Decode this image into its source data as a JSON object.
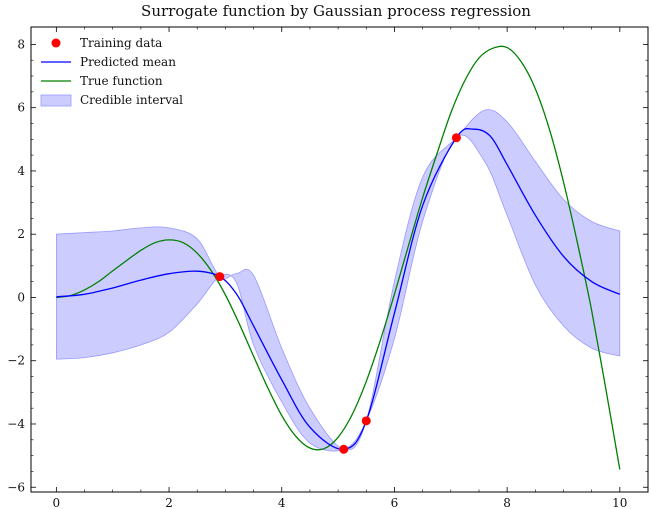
{
  "chart_data": {
    "type": "line",
    "title": "Surrogate function by Gaussian process regression",
    "xlabel": "",
    "ylabel": "",
    "xlim": [
      -0.45,
      10.5
    ],
    "ylim": [
      -6.15,
      8.55
    ],
    "x_ticks": [
      0,
      2,
      4,
      6,
      8,
      10
    ],
    "y_ticks": [
      -6,
      -4,
      -2,
      0,
      2,
      4,
      6,
      8
    ],
    "grid": false,
    "legend_position": "top-left",
    "legend": [
      "Training data",
      "Predicted mean",
      "True function",
      "Credible interval"
    ],
    "colors": {
      "training": "#ff0000",
      "mean": "#0000ff",
      "true": "#008000",
      "interval_fill": "#aaaaff",
      "interval_edge": "#9999ff"
    },
    "series": [
      {
        "name": "Training data",
        "kind": "scatter",
        "x": [
          2.9,
          5.1,
          5.5,
          7.1
        ],
        "y": [
          0.66,
          -4.8,
          -3.9,
          5.05
        ]
      },
      {
        "name": "Predicted mean",
        "kind": "line",
        "x": [
          0,
          0.5,
          1.0,
          1.5,
          2.0,
          2.5,
          2.9,
          3.2,
          3.5,
          4.0,
          4.5,
          5.1,
          5.5,
          6.0,
          6.5,
          7.1,
          7.4,
          7.7,
          8.0,
          8.5,
          9.0,
          9.5,
          10.0
        ],
        "y": [
          0.02,
          0.1,
          0.3,
          0.55,
          0.75,
          0.83,
          0.66,
          0.1,
          -0.9,
          -2.6,
          -4.1,
          -4.8,
          -3.9,
          -0.5,
          2.9,
          5.05,
          5.32,
          5.1,
          4.2,
          2.6,
          1.3,
          0.5,
          0.1
        ]
      },
      {
        "name": "True function",
        "kind": "line",
        "x": [
          0,
          0.25,
          0.5,
          0.75,
          1.0,
          1.25,
          1.5,
          1.75,
          2.0,
          2.25,
          2.5,
          2.75,
          3.0,
          3.25,
          3.5,
          3.75,
          4.0,
          4.25,
          4.5,
          4.75,
          5.0,
          5.25,
          5.5,
          5.75,
          6.0,
          6.25,
          6.5,
          6.75,
          7.0,
          7.25,
          7.5,
          7.75,
          8.0,
          8.25,
          8.5,
          8.75,
          9.0,
          9.25,
          9.5,
          9.75,
          10.0
        ],
        "y": [
          0.0,
          0.06,
          0.24,
          0.5,
          0.84,
          1.17,
          1.49,
          1.73,
          1.82,
          1.73,
          1.4,
          0.84,
          0.08,
          -0.85,
          -1.86,
          -2.85,
          -3.73,
          -4.39,
          -4.76,
          -4.78,
          -4.42,
          -3.7,
          -2.65,
          -1.35,
          0.1,
          1.64,
          3.15,
          4.52,
          5.83,
          6.86,
          7.57,
          7.88,
          7.9,
          7.45,
          6.6,
          5.32,
          3.65,
          1.7,
          -0.42,
          -2.87,
          -5.44
        ]
      },
      {
        "name": "Credible interval",
        "kind": "band",
        "x": [
          0,
          0.5,
          1.0,
          1.5,
          2.0,
          2.5,
          2.9,
          3.2,
          3.5,
          4.0,
          4.5,
          5.1,
          5.5,
          6.0,
          6.5,
          7.1,
          7.6,
          8.0,
          8.5,
          9.0,
          9.5,
          10.0
        ],
        "lower": [
          -1.95,
          -1.9,
          -1.75,
          -1.5,
          -1.1,
          -0.2,
          0.66,
          0.45,
          -1.5,
          -3.3,
          -4.6,
          -4.8,
          -3.9,
          -1.3,
          2.4,
          5.05,
          4.3,
          2.6,
          0.4,
          -0.9,
          -1.6,
          -1.85
        ],
        "upper": [
          2.0,
          2.05,
          2.1,
          2.2,
          2.2,
          1.85,
          0.66,
          0.76,
          0.7,
          -1.6,
          -3.5,
          -4.8,
          -3.9,
          0.5,
          3.8,
          5.05,
          5.92,
          5.55,
          4.3,
          3.1,
          2.4,
          2.1
        ]
      }
    ]
  }
}
